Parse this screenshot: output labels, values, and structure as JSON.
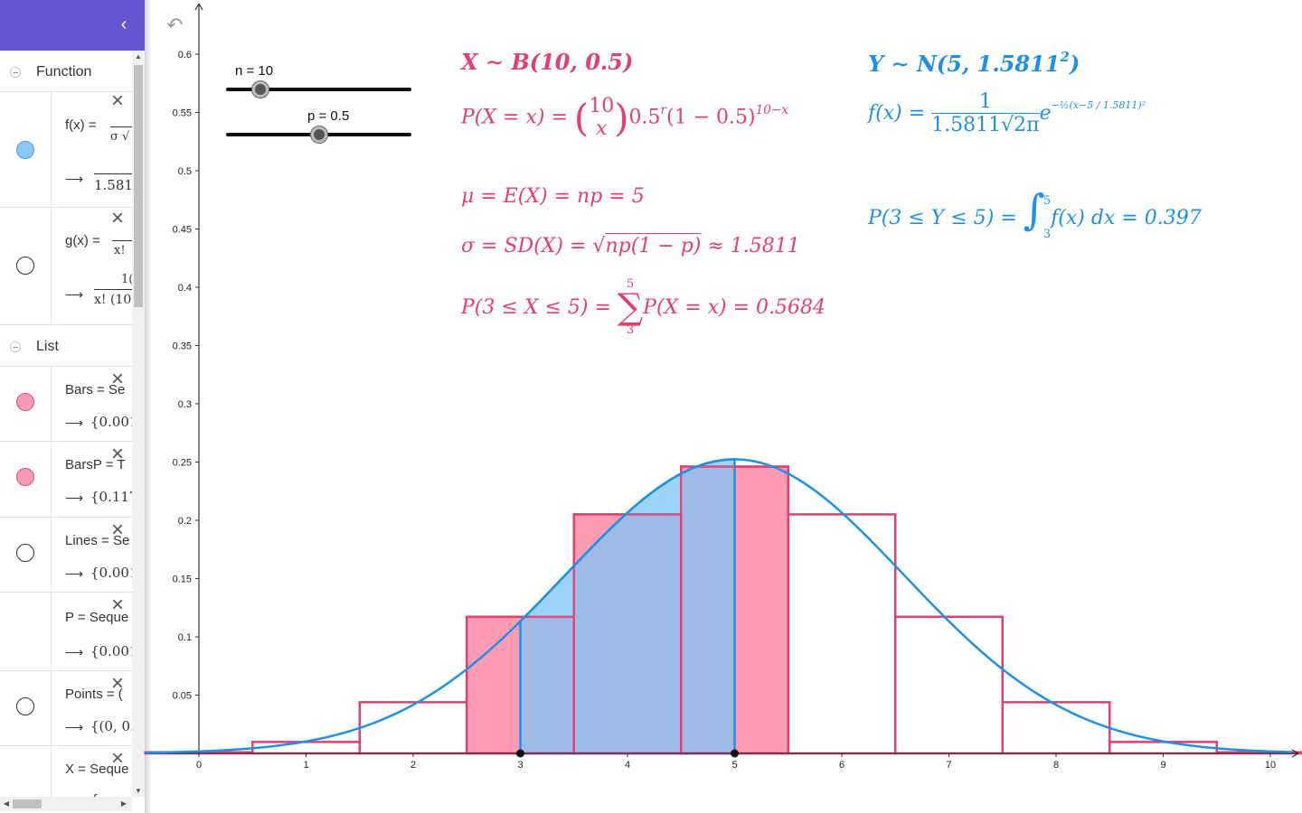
{
  "sidebar": {
    "collapse_icon": "chevron-left-icon",
    "groups": [
      {
        "label": "Function"
      },
      {
        "label": "List"
      }
    ],
    "items": [
      {
        "def": "f(x) = ",
        "def_frac_top": "",
        "def_frac_bottom": "σ √",
        "result": "1.581",
        "marble": "blue"
      },
      {
        "def": "g(x) = ",
        "def_frac_top": "",
        "def_frac_bottom": "x!",
        "result_top": "1(",
        "result": "x! (10",
        "marble": "empty"
      },
      {
        "def": "Bars = Se",
        "result": "{0.001",
        "marble": "pink"
      },
      {
        "def": "BarsP = T",
        "result": "{0.117",
        "marble": "pink"
      },
      {
        "def": "Lines = Se",
        "result": "{0.001",
        "marble": "empty"
      },
      {
        "def": "P = Seque",
        "result": "{0.001",
        "marble": "none"
      },
      {
        "def": "Points = (",
        "result": "{(0, 0.",
        "marble": "empty"
      },
      {
        "def": "X = Seque",
        "result": "{",
        "marble": "none"
      }
    ],
    "arrow": "⟶"
  },
  "toolbar": {
    "undo_icon": "undo-icon"
  },
  "sliders": [
    {
      "label": "n = 10",
      "value": 10,
      "min": 1,
      "max": 50
    },
    {
      "label": "p = 0.5",
      "value": 0.5,
      "min": 0,
      "max": 1
    }
  ],
  "formulas": {
    "binom_dist": {
      "lhs": "X ∼ B(10, 0.5)"
    },
    "binom_pmf": {
      "lhs": "P(X = x) = ",
      "n": "10",
      "k": "x",
      "mid": "0.5",
      "exp1": "r",
      "rest": "(1 − 0.5)",
      "exp2": "10−x"
    },
    "mean": "μ = E(X) = np = 5",
    "sd": {
      "lhs": "σ = SD(X) = ",
      "radicand": "np(1 − p)",
      "rhs": " ≈ 1.5811"
    },
    "binom_prob": {
      "lhs": "P(3 ≤  X ≤ 5) = ",
      "upper": "5",
      "lower": "3",
      "rhs": "P(X = x) = 0.5684"
    },
    "normal_dist": {
      "lhs": "Y ∼ N(5, 1.5811",
      "exp": "2",
      "close": ")"
    },
    "normal_pdf": {
      "lhs": "f(x) = ",
      "num": "1",
      "den": "1.5811√2π",
      "e": "e",
      "exp": "−½(x−5 / 1.5811)²"
    },
    "normal_prob": {
      "lhs": "P(3 ≤ Y ≤ 5) = ",
      "upper": "5",
      "lower": "3",
      "rhs": "f(x) dx = 0.397"
    }
  },
  "colors": {
    "pink": "#e43f6f",
    "pink_fill": "#ff9bb5",
    "blue": "#1e90e6",
    "blue_fill": "#7dc4f7",
    "overlap_fill": "#7f9bd6",
    "sidebar_header": "#6557d2"
  },
  "chart_data": {
    "type": "bar",
    "x_ticks": [
      "0",
      "1",
      "2",
      "3",
      "4",
      "5",
      "6",
      "7",
      "8",
      "9",
      "10"
    ],
    "y_ticks": [
      "0.05",
      "0.1",
      "0.15",
      "0.2",
      "0.25",
      "0.3",
      "0.35",
      "0.4",
      "0.45",
      "0.5",
      "0.55",
      "0.6"
    ],
    "xlim": [
      -0.5,
      10.2
    ],
    "ylim": [
      0,
      0.65
    ],
    "binomial": {
      "x": [
        0,
        1,
        2,
        3,
        4,
        5,
        6,
        7,
        8,
        9,
        10
      ],
      "values": [
        0.001,
        0.0098,
        0.0439,
        0.1172,
        0.2051,
        0.2461,
        0.2051,
        0.1172,
        0.0439,
        0.0098,
        0.001
      ],
      "highlighted": [
        3,
        4,
        5
      ]
    },
    "normal": {
      "mean": 5,
      "sd": 1.5811,
      "shade_from": 3,
      "shade_to": 5
    },
    "points": [
      3,
      5
    ]
  }
}
